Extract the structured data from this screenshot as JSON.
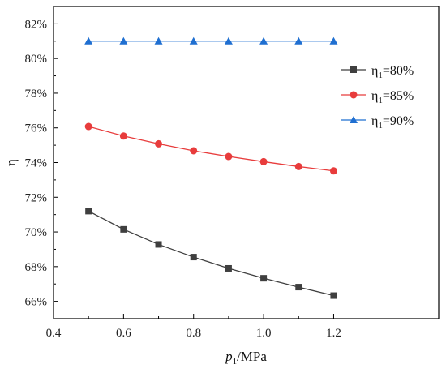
{
  "chart_data": {
    "type": "line",
    "x": [
      0.5,
      0.6,
      0.7,
      0.8,
      0.9,
      1.0,
      1.1,
      1.2
    ],
    "series": [
      {
        "name": "η1=80%",
        "name_parts": [
          "η",
          "1",
          "=80%"
        ],
        "color": "#3f3f3f",
        "marker": "square",
        "values": [
          71.2,
          70.15,
          69.28,
          68.55,
          67.9,
          67.33,
          66.82,
          66.33
        ]
      },
      {
        "name": "η1=85%",
        "name_parts": [
          "η",
          "1",
          "=85%"
        ],
        "color": "#e83c3c",
        "marker": "circle",
        "values": [
          76.08,
          75.53,
          75.08,
          74.68,
          74.35,
          74.05,
          73.77,
          73.52
        ]
      },
      {
        "name": "η1=90%",
        "name_parts": [
          "η",
          "1",
          "=90%"
        ],
        "color": "#1f6fd1",
        "marker": "triangle",
        "values": [
          81.0,
          81.0,
          81.0,
          81.0,
          81.0,
          81.0,
          81.0,
          81.0
        ]
      }
    ],
    "xlabel": "p1/MPa",
    "xlabel_parts": [
      "p",
      "1",
      "/MPa"
    ],
    "ylabel": "η",
    "xlim": [
      0.4,
      1.5
    ],
    "ylim": [
      65,
      83
    ],
    "xticks": [
      0.4,
      0.6,
      0.8,
      1.0,
      1.2
    ],
    "xtick_labels": [
      "0.4",
      "0.6",
      "0.8",
      "1.0",
      "1.2"
    ],
    "yticks": [
      66,
      68,
      70,
      72,
      74,
      76,
      78,
      80,
      82
    ],
    "ytick_labels": [
      "66%",
      "68%",
      "70%",
      "72%",
      "74%",
      "76%",
      "78%",
      "80%",
      "82%"
    ],
    "grid": false,
    "legend_position": "right"
  }
}
